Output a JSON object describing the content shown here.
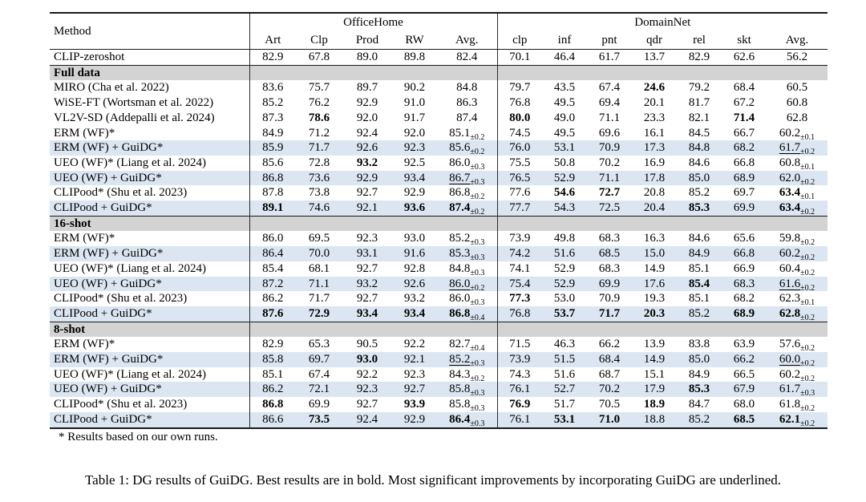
{
  "page": {
    "caption": "Table 1: DG results of GuiDG. Best results are in bold. Most significant improvements by incorporating GuiDG are underlined.",
    "footnote": "* Results based on our own runs."
  },
  "colors": {
    "highlight_row": "#dbe6f2",
    "section_row": "#d3d3d3",
    "rule": "#1a1a1a"
  },
  "table": {
    "method_header": "Method",
    "groups": [
      {
        "label": "OfficeHome",
        "cols": [
          "Art",
          "Clp",
          "Prod",
          "RW",
          "Avg."
        ]
      },
      {
        "label": "DomainNet",
        "cols": [
          "clp",
          "inf",
          "pnt",
          "qdr",
          "rel",
          "skt",
          "Avg."
        ]
      }
    ],
    "rows": [
      {
        "method": "CLIP-zeroshot",
        "highlight": false,
        "cells": [
          {
            "v": "82.9"
          },
          {
            "v": "67.8"
          },
          {
            "v": "89.0"
          },
          {
            "v": "89.8"
          },
          {
            "v": "82.4"
          },
          {
            "v": "70.1"
          },
          {
            "v": "46.4"
          },
          {
            "v": "61.7"
          },
          {
            "v": "13.7"
          },
          {
            "v": "82.9"
          },
          {
            "v": "62.6"
          },
          {
            "v": "56.2"
          }
        ]
      },
      {
        "section": "Full data"
      },
      {
        "method": "MIRO (Cha et al. 2022)",
        "highlight": false,
        "cells": [
          {
            "v": "83.6"
          },
          {
            "v": "75.7"
          },
          {
            "v": "89.7"
          },
          {
            "v": "90.2"
          },
          {
            "v": "84.8"
          },
          {
            "v": "79.7"
          },
          {
            "v": "43.5"
          },
          {
            "v": "67.4"
          },
          {
            "v": "24.6",
            "b": 1
          },
          {
            "v": "79.2"
          },
          {
            "v": "68.4"
          },
          {
            "v": "60.5"
          }
        ]
      },
      {
        "method": "WiSE-FT (Wortsman et al. 2022)",
        "highlight": false,
        "cells": [
          {
            "v": "85.2"
          },
          {
            "v": "76.2"
          },
          {
            "v": "92.9"
          },
          {
            "v": "91.0"
          },
          {
            "v": "86.3"
          },
          {
            "v": "76.8"
          },
          {
            "v": "49.5"
          },
          {
            "v": "69.4"
          },
          {
            "v": "20.1"
          },
          {
            "v": "81.7"
          },
          {
            "v": "67.2"
          },
          {
            "v": "60.8"
          }
        ]
      },
      {
        "method": "VL2V-SD (Addepalli et al. 2024)",
        "highlight": false,
        "cells": [
          {
            "v": "87.3"
          },
          {
            "v": "78.6",
            "b": 1
          },
          {
            "v": "92.0"
          },
          {
            "v": "91.7"
          },
          {
            "v": "87.4"
          },
          {
            "v": "80.0",
            "b": 1
          },
          {
            "v": "49.0"
          },
          {
            "v": "71.1"
          },
          {
            "v": "23.3"
          },
          {
            "v": "82.1"
          },
          {
            "v": "71.4",
            "b": 1
          },
          {
            "v": "62.8"
          }
        ]
      },
      {
        "method": "ERM (WF)*",
        "highlight": false,
        "cells": [
          {
            "v": "84.9"
          },
          {
            "v": "71.2"
          },
          {
            "v": "92.4"
          },
          {
            "v": "92.0"
          },
          {
            "v": "85.1",
            "s": "±0.2"
          },
          {
            "v": "74.5"
          },
          {
            "v": "49.5"
          },
          {
            "v": "69.6"
          },
          {
            "v": "16.1"
          },
          {
            "v": "84.5"
          },
          {
            "v": "66.7"
          },
          {
            "v": "60.2",
            "s": "±0.1"
          }
        ]
      },
      {
        "method": "ERM (WF) + GuiDG*",
        "highlight": true,
        "cells": [
          {
            "v": "85.9"
          },
          {
            "v": "71.7"
          },
          {
            "v": "92.6"
          },
          {
            "v": "92.3"
          },
          {
            "v": "85.6",
            "s": "±0.2"
          },
          {
            "v": "76.0"
          },
          {
            "v": "53.1"
          },
          {
            "v": "70.9"
          },
          {
            "v": "17.3"
          },
          {
            "v": "84.8"
          },
          {
            "v": "68.2"
          },
          {
            "v": "61.7",
            "u": 1,
            "s": "±0.2"
          }
        ]
      },
      {
        "method": "UEO (WF)* (Liang et al. 2024)",
        "highlight": false,
        "cells": [
          {
            "v": "85.6"
          },
          {
            "v": "72.8"
          },
          {
            "v": "93.2",
            "b": 1
          },
          {
            "v": "92.5"
          },
          {
            "v": "86.0",
            "s": "±0.3"
          },
          {
            "v": "75.5"
          },
          {
            "v": "50.8"
          },
          {
            "v": "70.2"
          },
          {
            "v": "16.9"
          },
          {
            "v": "84.6"
          },
          {
            "v": "66.8"
          },
          {
            "v": "60.8",
            "s": "±0.1"
          }
        ]
      },
      {
        "method": "UEO (WF) + GuiDG*",
        "highlight": true,
        "cells": [
          {
            "v": "86.8"
          },
          {
            "v": "73.6"
          },
          {
            "v": "92.9"
          },
          {
            "v": "93.4"
          },
          {
            "v": "86.7",
            "u": 1,
            "s": "±0.3"
          },
          {
            "v": "76.5"
          },
          {
            "v": "52.9"
          },
          {
            "v": "71.1"
          },
          {
            "v": "17.8"
          },
          {
            "v": "85.0"
          },
          {
            "v": "68.9"
          },
          {
            "v": "62.0",
            "s": "±0.2"
          }
        ]
      },
      {
        "method": "CLIPood* (Shu et al. 2023)",
        "highlight": false,
        "cells": [
          {
            "v": "87.8"
          },
          {
            "v": "73.8"
          },
          {
            "v": "92.7"
          },
          {
            "v": "92.9"
          },
          {
            "v": "86.8",
            "s": "±0.2"
          },
          {
            "v": "77.6"
          },
          {
            "v": "54.6",
            "b": 1
          },
          {
            "v": "72.7",
            "b": 1
          },
          {
            "v": "20.8"
          },
          {
            "v": "85.2"
          },
          {
            "v": "69.7"
          },
          {
            "v": "63.4",
            "b": 1,
            "s": "±0.1"
          }
        ]
      },
      {
        "method": "CLIPood + GuiDG*",
        "highlight": true,
        "cells": [
          {
            "v": "89.1",
            "b": 1
          },
          {
            "v": "74.6"
          },
          {
            "v": "92.1"
          },
          {
            "v": "93.6",
            "b": 1
          },
          {
            "v": "87.4",
            "b": 1,
            "s": "±0.2"
          },
          {
            "v": "77.7"
          },
          {
            "v": "54.3"
          },
          {
            "v": "72.5"
          },
          {
            "v": "20.4"
          },
          {
            "v": "85.3",
            "b": 1
          },
          {
            "v": "69.9"
          },
          {
            "v": "63.4",
            "b": 1,
            "s": "±0.2"
          }
        ]
      },
      {
        "section": "16-shot"
      },
      {
        "method": "ERM (WF)*",
        "highlight": false,
        "cells": [
          {
            "v": "86.0"
          },
          {
            "v": "69.5"
          },
          {
            "v": "92.3"
          },
          {
            "v": "93.0"
          },
          {
            "v": "85.2",
            "s": "±0.3"
          },
          {
            "v": "73.9"
          },
          {
            "v": "49.8"
          },
          {
            "v": "68.3"
          },
          {
            "v": "16.3"
          },
          {
            "v": "84.6"
          },
          {
            "v": "65.6"
          },
          {
            "v": "59.8",
            "s": "±0.2"
          }
        ]
      },
      {
        "method": "ERM (WF) + GuiDG*",
        "highlight": true,
        "cells": [
          {
            "v": "86.4"
          },
          {
            "v": "70.0"
          },
          {
            "v": "93.1"
          },
          {
            "v": "91.6"
          },
          {
            "v": "85.3",
            "s": "±0.3"
          },
          {
            "v": "74.2"
          },
          {
            "v": "51.6"
          },
          {
            "v": "68.5"
          },
          {
            "v": "15.0"
          },
          {
            "v": "84.9"
          },
          {
            "v": "66.8"
          },
          {
            "v": "60.2",
            "s": "±0.2"
          }
        ]
      },
      {
        "method": "UEO (WF)* (Liang et al. 2024)",
        "highlight": false,
        "cells": [
          {
            "v": "85.4"
          },
          {
            "v": "68.1"
          },
          {
            "v": "92.7"
          },
          {
            "v": "92.8"
          },
          {
            "v": "84.8",
            "s": "±0.3"
          },
          {
            "v": "74.1"
          },
          {
            "v": "52.9"
          },
          {
            "v": "68.3"
          },
          {
            "v": "14.9"
          },
          {
            "v": "85.1"
          },
          {
            "v": "66.9"
          },
          {
            "v": "60.4",
            "s": "±0.2"
          }
        ]
      },
      {
        "method": "UEO (WF) + GuiDG*",
        "highlight": true,
        "cells": [
          {
            "v": "87.2"
          },
          {
            "v": "71.1"
          },
          {
            "v": "93.2"
          },
          {
            "v": "92.6"
          },
          {
            "v": "86.0",
            "u": 1,
            "s": "±0.2"
          },
          {
            "v": "75.4"
          },
          {
            "v": "52.9"
          },
          {
            "v": "69.9"
          },
          {
            "v": "17.6"
          },
          {
            "v": "85.4",
            "b": 1
          },
          {
            "v": "68.3"
          },
          {
            "v": "61.6",
            "u": 1,
            "s": "±0.2"
          }
        ]
      },
      {
        "method": "CLIPood* (Shu et al. 2023)",
        "highlight": false,
        "cells": [
          {
            "v": "86.2"
          },
          {
            "v": "71.7"
          },
          {
            "v": "92.7"
          },
          {
            "v": "93.2"
          },
          {
            "v": "86.0",
            "s": "±0.3"
          },
          {
            "v": "77.3",
            "b": 1
          },
          {
            "v": "53.0"
          },
          {
            "v": "70.9"
          },
          {
            "v": "19.3"
          },
          {
            "v": "85.1"
          },
          {
            "v": "68.2"
          },
          {
            "v": "62.3",
            "s": "±0.1"
          }
        ]
      },
      {
        "method": "CLIPood + GuiDG*",
        "highlight": true,
        "cells": [
          {
            "v": "87.6",
            "b": 1
          },
          {
            "v": "72.9",
            "b": 1
          },
          {
            "v": "93.4",
            "b": 1
          },
          {
            "v": "93.4",
            "b": 1
          },
          {
            "v": "86.8",
            "b": 1,
            "s": "±0.4"
          },
          {
            "v": "76.8"
          },
          {
            "v": "53.7",
            "b": 1
          },
          {
            "v": "71.7",
            "b": 1
          },
          {
            "v": "20.3",
            "b": 1
          },
          {
            "v": "85.2"
          },
          {
            "v": "68.9",
            "b": 1
          },
          {
            "v": "62.8",
            "b": 1,
            "s": "±0.2"
          }
        ]
      },
      {
        "section": "8-shot"
      },
      {
        "method": "ERM (WF)*",
        "highlight": false,
        "cells": [
          {
            "v": "82.9"
          },
          {
            "v": "65.3"
          },
          {
            "v": "90.5"
          },
          {
            "v": "92.2"
          },
          {
            "v": "82.7",
            "s": "±0.4"
          },
          {
            "v": "71.5"
          },
          {
            "v": "46.3"
          },
          {
            "v": "66.2"
          },
          {
            "v": "13.9"
          },
          {
            "v": "83.8"
          },
          {
            "v": "63.9"
          },
          {
            "v": "57.6",
            "s": "±0.2"
          }
        ]
      },
      {
        "method": "ERM (WF) + GuiDG*",
        "highlight": true,
        "cells": [
          {
            "v": "85.8"
          },
          {
            "v": "69.7"
          },
          {
            "v": "93.0",
            "b": 1
          },
          {
            "v": "92.1"
          },
          {
            "v": "85.2",
            "u": 1,
            "s": "±0.3"
          },
          {
            "v": "73.9"
          },
          {
            "v": "51.5"
          },
          {
            "v": "68.4"
          },
          {
            "v": "14.9"
          },
          {
            "v": "85.0"
          },
          {
            "v": "66.2"
          },
          {
            "v": "60.0",
            "u": 1,
            "s": "±0.2"
          }
        ]
      },
      {
        "method": "UEO (WF)* (Liang et al. 2024)",
        "highlight": false,
        "cells": [
          {
            "v": "85.1"
          },
          {
            "v": "67.4"
          },
          {
            "v": "92.2"
          },
          {
            "v": "92.3"
          },
          {
            "v": "84.3",
            "s": "±0.2"
          },
          {
            "v": "74.3"
          },
          {
            "v": "51.6"
          },
          {
            "v": "68.7"
          },
          {
            "v": "15.1"
          },
          {
            "v": "84.9"
          },
          {
            "v": "66.5"
          },
          {
            "v": "60.2",
            "s": "±0.2"
          }
        ]
      },
      {
        "method": "UEO (WF) + GuiDG*",
        "highlight": true,
        "cells": [
          {
            "v": "86.2"
          },
          {
            "v": "72.1"
          },
          {
            "v": "92.3"
          },
          {
            "v": "92.7"
          },
          {
            "v": "85.8",
            "s": "±0.3"
          },
          {
            "v": "76.1"
          },
          {
            "v": "52.7"
          },
          {
            "v": "70.2"
          },
          {
            "v": "17.9"
          },
          {
            "v": "85.3",
            "b": 1
          },
          {
            "v": "67.9"
          },
          {
            "v": "61.7",
            "s": "±0.3"
          }
        ]
      },
      {
        "method": "CLIPood* (Shu et al. 2023)",
        "highlight": false,
        "cells": [
          {
            "v": "86.8",
            "b": 1
          },
          {
            "v": "69.9"
          },
          {
            "v": "92.7"
          },
          {
            "v": "93.9",
            "b": 1
          },
          {
            "v": "85.8",
            "s": "±0.3"
          },
          {
            "v": "76.9",
            "b": 1
          },
          {
            "v": "51.7"
          },
          {
            "v": "70.5"
          },
          {
            "v": "18.9",
            "b": 1
          },
          {
            "v": "84.7"
          },
          {
            "v": "68.0"
          },
          {
            "v": "61.8",
            "s": "±0.2"
          }
        ]
      },
      {
        "method": "CLIPood + GuiDG*",
        "highlight": true,
        "cells": [
          {
            "v": "86.6"
          },
          {
            "v": "73.5",
            "b": 1
          },
          {
            "v": "92.4"
          },
          {
            "v": "92.9"
          },
          {
            "v": "86.4",
            "b": 1,
            "s": "±0.3"
          },
          {
            "v": "76.1"
          },
          {
            "v": "53.1",
            "b": 1
          },
          {
            "v": "71.0",
            "b": 1
          },
          {
            "v": "18.8"
          },
          {
            "v": "85.2"
          },
          {
            "v": "68.5",
            "b": 1
          },
          {
            "v": "62.1",
            "b": 1,
            "s": "±0.2"
          }
        ]
      }
    ]
  }
}
